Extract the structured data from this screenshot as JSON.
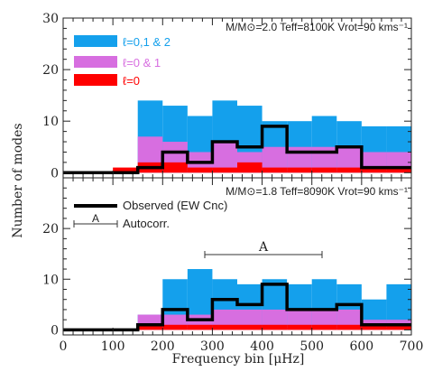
{
  "chart_data": {
    "type": "bar",
    "xlabel": "Frequency bin [μHz]",
    "ylabel": "Number of modes",
    "bin_edges": [
      0,
      50,
      100,
      150,
      200,
      250,
      300,
      350,
      400,
      450,
      500,
      550,
      600,
      650,
      700
    ],
    "x_ticks": [
      0,
      100,
      200,
      300,
      400,
      500,
      600,
      700
    ],
    "colors": {
      "l012": "#14a0ec",
      "l01": "#d76ee0",
      "l0": "#ff0000",
      "observed": "#000000"
    },
    "panels": [
      {
        "header": "M/M⊙=2.0 Teff=8100K Vrot=90 kms⁻¹",
        "ylim": [
          -1,
          30
        ],
        "y_ticks": [
          0,
          10,
          20,
          30
        ],
        "legend": [
          "ℓ=0,1 & 2",
          "ℓ=0 & 1",
          "ℓ=0"
        ],
        "series": [
          {
            "name": "ℓ=0,1 & 2",
            "values": [
              0,
              0,
              0,
              14,
              13,
              11,
              14,
              13,
              10,
              10,
              11,
              10,
              9,
              9
            ]
          },
          {
            "name": "ℓ=0 & 1",
            "values": [
              0,
              0,
              0,
              7,
              6,
              4,
              6,
              4,
              5,
              5,
              5,
              5,
              4,
              4
            ]
          },
          {
            "name": "ℓ=0",
            "values": [
              0,
              0,
              1,
              2,
              2,
              1,
              1,
              2,
              1,
              1,
              1,
              1,
              1,
              1
            ]
          }
        ],
        "observed": [
          0,
          0,
          0,
          1,
          4,
          2,
          6,
          5,
          9,
          4,
          4,
          5,
          1,
          1
        ]
      },
      {
        "header": "M/M⊙=1.8 Teff=8090K Vrot=90 kms⁻¹",
        "ylim": [
          -1,
          30
        ],
        "y_ticks": [
          0,
          10,
          20
        ],
        "legend": [
          "Observed (EW Cnc)",
          "Autocorr."
        ],
        "bracket_label": "A",
        "series": [
          {
            "name": "ℓ=0,1 & 2",
            "values": [
              0,
              0,
              0,
              3,
              10,
              12,
              10,
              9,
              10,
              9,
              10,
              9,
              6,
              9
            ]
          },
          {
            "name": "ℓ=0 & 1",
            "values": [
              0,
              0,
              0,
              3,
              3,
              3,
              4,
              4,
              4,
              4,
              4,
              4,
              2,
              2
            ]
          },
          {
            "name": "ℓ=0",
            "values": [
              0,
              0,
              0,
              1,
              1,
              1,
              1,
              1,
              1,
              1,
              1,
              1,
              1,
              1
            ]
          }
        ],
        "observed": [
          0,
          0,
          0,
          1,
          4,
          2,
          6,
          5,
          9,
          4,
          4,
          5,
          1,
          1
        ]
      }
    ]
  }
}
